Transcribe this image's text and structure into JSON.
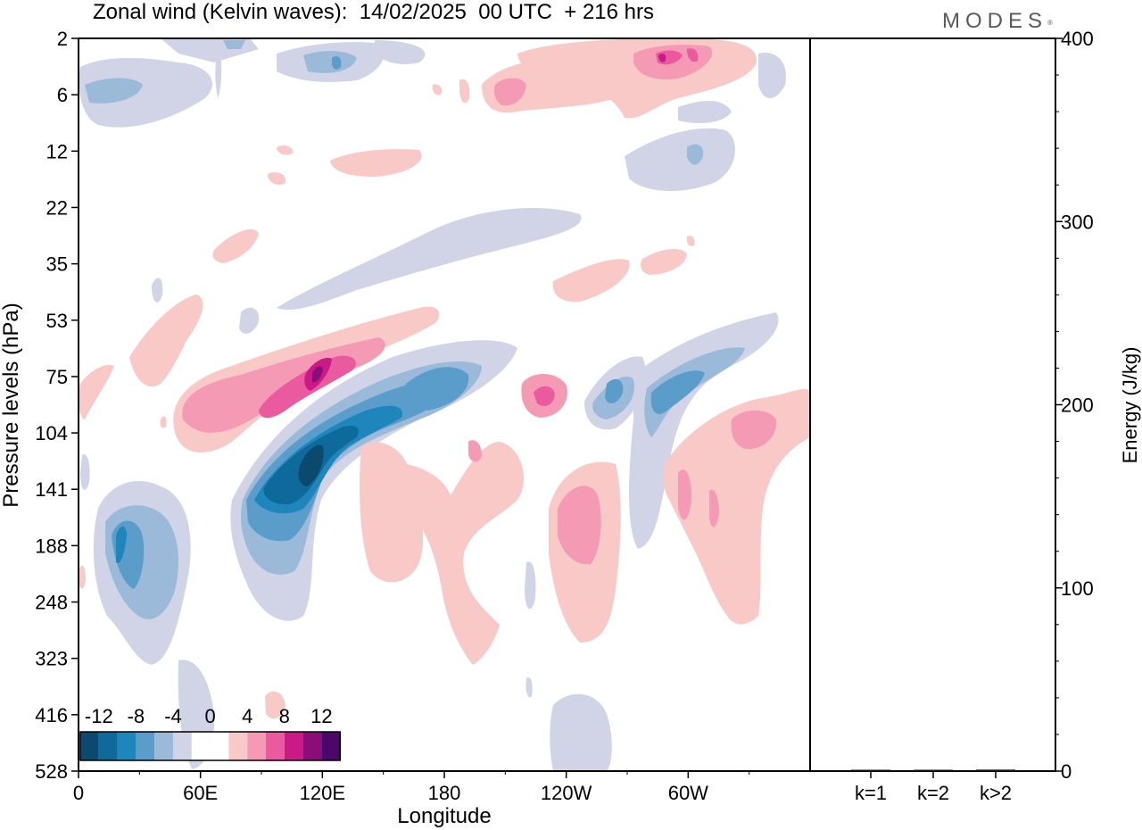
{
  "title": "Zonal wind (Kelvin waves):  14/02/2025  00 UTC  + 216 hrs",
  "brand": "MODES",
  "brand_mark": "®",
  "colors": {
    "blue_darkest": "#0b4a6e",
    "blue_dark": "#0f6a9c",
    "blue_mid": "#1f86bd",
    "blue": "#5a9cca",
    "blue_light": "#9bb9d9",
    "blue_pale": "#d0d4e6",
    "white": "#ffffff",
    "pink_pale": "#f8c9c6",
    "pink_light": "#f59ab4",
    "pink": "#ea5a9e",
    "magenta": "#cb1a88",
    "purple": "#8a0d7a",
    "purple_dark": "#4b0869"
  },
  "chart_data": [
    {
      "type": "heatmap",
      "title": "Zonal wind (Kelvin waves):  14/02/2025  00 UTC  + 216 hrs",
      "xlabel": "Longitude",
      "ylabel": "Pressure levels (hPa)",
      "x_ticks": [
        "0",
        "60E",
        "120E",
        "180",
        "120W",
        "60W"
      ],
      "y_ticks": [
        "2",
        "6",
        "12",
        "22",
        "35",
        "53",
        "75",
        "104",
        "141",
        "188",
        "248",
        "323",
        "416",
        "528"
      ],
      "y_scale": "log",
      "colorbar": {
        "labels": [
          "-12",
          "-8",
          "-4",
          "0",
          "4",
          "8",
          "12"
        ],
        "levels": [
          -14,
          -12,
          -10,
          -8,
          -6,
          -4,
          -2,
          2,
          4,
          6,
          8,
          10,
          12,
          14
        ]
      },
      "features": [
        {
          "name": "negative anomaly, 0-40E",
          "longitude": [
            15,
            20
          ],
          "pressure": [
            141,
            260
          ],
          "value": -10
        },
        {
          "name": "negative anomaly, 100-190E",
          "longitude": [
            105,
            185
          ],
          "pressure": [
            85,
            160
          ],
          "value": -14
        },
        {
          "name": "positive anomaly, 100-130E",
          "longitude": [
            100,
            130
          ],
          "pressure": [
            70,
            95
          ],
          "value": 12
        },
        {
          "name": "positive anomaly, near 130W",
          "longitude": [
            228,
            232
          ],
          "pressure": [
            85,
            95
          ],
          "value": 8
        },
        {
          "name": "positive anomaly, near 105W",
          "longitude": [
            245,
            265
          ],
          "pressure": [
            140,
            200
          ],
          "value": 8
        }
      ]
    },
    {
      "type": "bar",
      "ylabel": "Energy (J/kg)",
      "categories": [
        "k=1",
        "k=2",
        "k>2"
      ],
      "values": [
        0.5,
        0.3,
        0.8
      ],
      "ylim": [
        0,
        400
      ],
      "y_ticks": [
        "0",
        "100",
        "200",
        "300",
        "400"
      ]
    }
  ]
}
